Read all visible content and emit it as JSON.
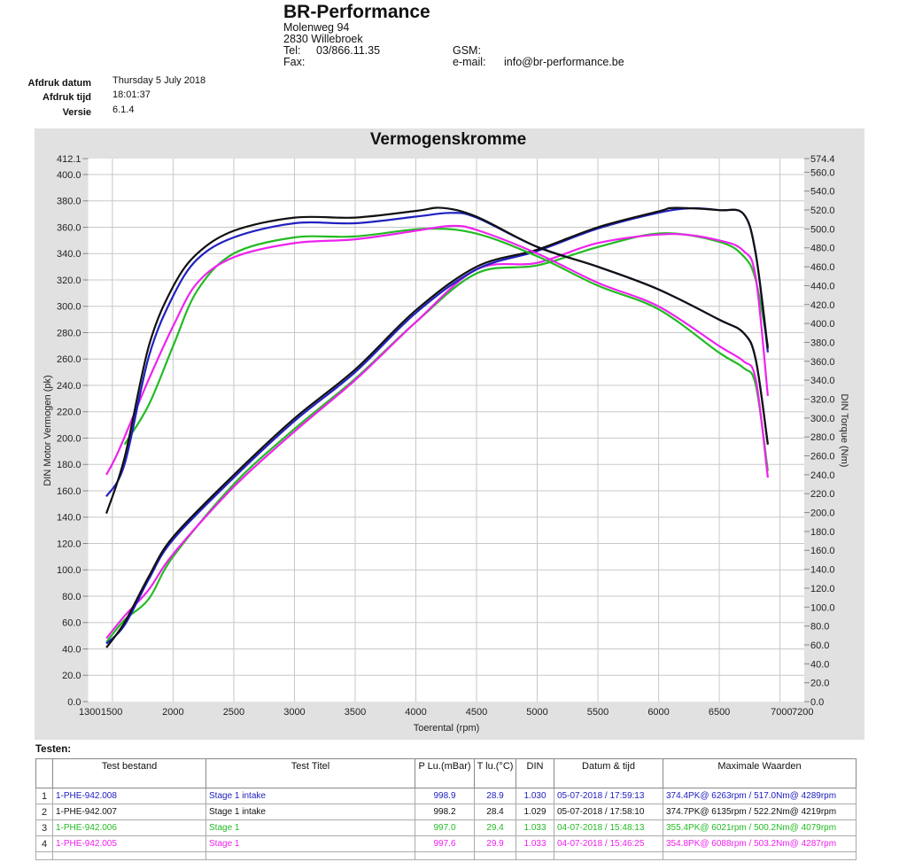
{
  "header": {
    "company": "BR-Performance",
    "address_line1": "Molenweg 94",
    "address_line2": "2830 Willebroek",
    "tel_label": "Tel:",
    "tel_value": "03/866.11.35",
    "fax_label": "Fax:",
    "gsm_label": "GSM:",
    "email_label": "e-mail:",
    "email_value": "info@br-performance.be"
  },
  "print_info": {
    "date_label": "Afdruk datum",
    "date_value": "Thursday 5 July 2018",
    "time_label": "Afdruk tijd",
    "time_value": "18:01:37",
    "version_label": "Versie",
    "version_value": "6.1.4"
  },
  "colors": {
    "blue": "#2020c0",
    "black": "#111111",
    "green": "#22bb22",
    "magenta": "#ee22ee",
    "panel": "#e1e1e1",
    "grid": "#c8c8c8"
  },
  "chart_data": {
    "type": "line",
    "title": "Vermogenskromme",
    "xlabel": "Toerental (rpm)",
    "ylabel": "DIN Motor Vermogen (pk)",
    "y2label": "DIN Torque (Nm)",
    "xlim": [
      1300,
      7200
    ],
    "ylim": [
      0,
      412.1
    ],
    "y2lim": [
      0,
      574.4
    ],
    "grid": true,
    "x_ticks": [
      1300,
      1500,
      2000,
      2500,
      3000,
      3500,
      4000,
      4500,
      5000,
      5500,
      6000,
      6500,
      7000,
      7200
    ],
    "x_tick_labels": [
      "1300",
      "1500",
      "2000",
      "2500",
      "3000",
      "3500",
      "4000",
      "4500",
      "5000",
      "5500",
      "6000",
      "6500",
      "7000",
      "7200"
    ],
    "y_ticks": [
      0,
      20,
      40,
      60,
      80,
      100,
      120,
      140,
      160,
      180,
      200,
      220,
      240,
      260,
      280,
      300,
      320,
      340,
      360,
      380,
      400,
      412.1
    ],
    "y_tick_labels": [
      "0.0",
      "20.0",
      "40.0",
      "60.0",
      "80.0",
      "100.0",
      "120.0",
      "140.0",
      "160.0",
      "180.0",
      "200.0",
      "220.0",
      "240.0",
      "260.0",
      "280.0",
      "300.0",
      "320.0",
      "340.0",
      "360.0",
      "380.0",
      "400.0",
      "412.1"
    ],
    "y2_ticks": [
      0,
      20,
      40,
      60,
      80,
      100,
      120,
      140,
      160,
      180,
      200,
      220,
      240,
      260,
      280,
      300,
      320,
      340,
      360,
      380,
      400,
      420,
      440,
      460,
      480,
      500,
      520,
      540,
      560,
      574.4
    ],
    "y2_tick_labels": [
      "0.0",
      "20.0",
      "40.0",
      "60.0",
      "80.0",
      "100.0",
      "120.0",
      "140.0",
      "160.0",
      "180.0",
      "200.0",
      "220.0",
      "240.0",
      "260.0",
      "280.0",
      "300.0",
      "320.0",
      "340.0",
      "360.0",
      "380.0",
      "400.0",
      "420.0",
      "440.0",
      "460.0",
      "480.0",
      "500.0",
      "520.0",
      "540.0",
      "560.0",
      "574.4"
    ],
    "series": [
      {
        "name": "1-PHE-942.008 Stage 1 intake",
        "color": "#2020c0",
        "kind": "power",
        "axis": "left",
        "x": [
          1450,
          1600,
          1800,
          2000,
          2500,
          3000,
          3500,
          4000,
          4500,
          5000,
          5500,
          6000,
          6263,
          6500,
          6700,
          6800,
          6900
        ],
        "values": [
          44,
          58,
          93,
          123,
          170,
          213,
          250,
          295,
          328,
          342,
          359,
          371,
          374.4,
          373,
          370,
          340,
          265
        ]
      },
      {
        "name": "1-PHE-942.007 Stage 1 intake",
        "color": "#111111",
        "kind": "power",
        "axis": "left",
        "x": [
          1450,
          1600,
          1800,
          2000,
          2500,
          3000,
          3500,
          4000,
          4500,
          5000,
          5500,
          6000,
          6135,
          6500,
          6700,
          6800,
          6900
        ],
        "values": [
          41,
          60,
          95,
          125,
          172,
          215,
          252,
          297,
          330,
          343,
          360,
          372,
          374.7,
          373,
          370,
          340,
          268
        ]
      },
      {
        "name": "1-PHE-942.006 Stage 1",
        "color": "#22bb22",
        "kind": "power",
        "axis": "left",
        "x": [
          1450,
          1600,
          1800,
          2000,
          2500,
          3000,
          3500,
          4000,
          4500,
          5000,
          5500,
          6021,
          6500,
          6700,
          6800,
          6900
        ],
        "values": [
          45,
          62,
          78,
          110,
          165,
          207,
          245,
          288,
          325,
          331,
          345,
          355.4,
          349,
          338,
          320,
          270
        ]
      },
      {
        "name": "1-PHE-942.005 Stage 1",
        "color": "#ee22ee",
        "kind": "power",
        "axis": "left",
        "x": [
          1450,
          1600,
          1800,
          2000,
          2500,
          3000,
          3500,
          4000,
          4500,
          5000,
          5500,
          6088,
          6500,
          6700,
          6800,
          6900
        ],
        "values": [
          48,
          65,
          85,
          112,
          163,
          205,
          244,
          288,
          328,
          333,
          348,
          354.8,
          350,
          342,
          322,
          232
        ]
      },
      {
        "name": "1-PHE-942.008 Stage 1 intake",
        "color": "#2020c0",
        "kind": "torque",
        "axis": "right",
        "x": [
          1450,
          1600,
          1800,
          2000,
          2200,
          2500,
          3000,
          3500,
          4000,
          4289,
          4500,
          5000,
          5500,
          6000,
          6500,
          6700,
          6800,
          6900
        ],
        "values": [
          217,
          251,
          365,
          429,
          468,
          491,
          506,
          506,
          513,
          517.0,
          512,
          481,
          460,
          436,
          404,
          390,
          362,
          272
        ]
      },
      {
        "name": "1-PHE-942.007 Stage 1 intake",
        "color": "#111111",
        "kind": "torque",
        "axis": "right",
        "x": [
          1450,
          1600,
          1800,
          2000,
          2200,
          2500,
          3000,
          3500,
          4000,
          4219,
          4500,
          5000,
          5500,
          6000,
          6500,
          6700,
          6800,
          6900
        ],
        "values": [
          199,
          258,
          376,
          439,
          474,
          498,
          512,
          512,
          519,
          522.2,
          513,
          481,
          460,
          436,
          404,
          390,
          362,
          272
        ]
      },
      {
        "name": "1-PHE-942.006 Stage 1",
        "color": "#22bb22",
        "kind": "torque",
        "axis": "right",
        "x": [
          1600,
          1800,
          2000,
          2200,
          2500,
          3000,
          3500,
          4079,
          4500,
          5000,
          5500,
          6000,
          6500,
          6700,
          6800,
          6900
        ],
        "values": [
          272,
          314,
          376,
          435,
          474,
          491,
          492,
          500.2,
          495,
          471,
          440,
          415,
          369,
          353,
          335,
          244
        ]
      },
      {
        "name": "1-PHE-942.005 Stage 1",
        "color": "#ee22ee",
        "kind": "torque",
        "axis": "right",
        "x": [
          1450,
          1550,
          1800,
          2000,
          2200,
          2500,
          3000,
          3500,
          4000,
          4287,
          4500,
          5000,
          5500,
          6000,
          6500,
          6700,
          6800,
          6900
        ],
        "values": [
          240,
          265,
          341,
          397,
          443,
          470,
          485,
          489,
          498,
          503.2,
          499,
          474,
          443,
          418,
          376,
          360,
          341,
          237
        ]
      }
    ]
  },
  "tests": {
    "section_label": "Testen:",
    "columns": [
      "",
      "Test bestand",
      "Test Titel",
      "P Lu.(mBar)",
      "T lu.(°C)",
      "DIN",
      "Datum & tijd",
      "Maximale Waarden"
    ],
    "rows": [
      {
        "idx": "1",
        "file": "1-PHE-942.008",
        "title": "Stage 1 intake",
        "p": "998.9",
        "t": "28.9",
        "din": "1.030",
        "datetime": "05-07-2018 / 17:59:13",
        "max": "374.4PK@ 6263rpm / 517.0Nm@ 4289rpm",
        "color": "#2020c0"
      },
      {
        "idx": "2",
        "file": "1-PHE-942.007",
        "title": "Stage 1 intake",
        "p": "998.2",
        "t": "28.4",
        "din": "1.029",
        "datetime": "05-07-2018 / 17:58:10",
        "max": "374.7PK@ 6135rpm / 522.2Nm@ 4219rpm",
        "color": "#111111"
      },
      {
        "idx": "3",
        "file": "1-PHE-942.006",
        "title": "Stage 1",
        "p": "997.0",
        "t": "29.4",
        "din": "1.033",
        "datetime": "04-07-2018 / 15:48:13",
        "max": "355.4PK@ 6021rpm / 500.2Nm@ 4079rpm",
        "color": "#22bb22"
      },
      {
        "idx": "4",
        "file": "1-PHE-942.005",
        "title": "Stage 1",
        "p": "997.6",
        "t": "29.9",
        "din": "1.033",
        "datetime": "04-07-2018 / 15:46:25",
        "max": "354.8PK@ 6088rpm / 503.2Nm@ 4287rpm",
        "color": "#ee22ee"
      }
    ]
  }
}
